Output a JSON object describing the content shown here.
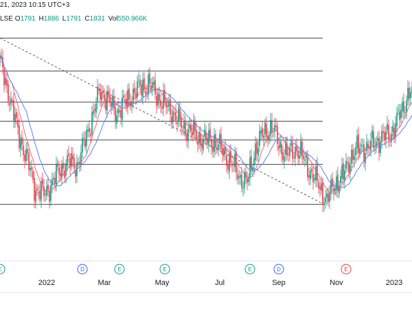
{
  "header": {
    "datetime_fragment": "21, 2023 10:15 UTC+3",
    "exchange_fragment": "LSE",
    "ohlc": [
      {
        "label": "O",
        "value": "1791"
      },
      {
        "label": "H",
        "value": "1886"
      },
      {
        "label": "L",
        "value": "1791"
      },
      {
        "label": "C",
        "value": "1831"
      },
      {
        "label": "Vol",
        "value": "550.966K"
      }
    ]
  },
  "chart_data": {
    "type": "candlestick",
    "x_tick_labels": [
      "2022",
      "Mar",
      "May",
      "Jul",
      "Sep",
      "Nov",
      "2023"
    ],
    "ylim": [
      1380,
      2040
    ],
    "fib_levels": [
      2010,
      1917,
      1829,
      1775,
      1722,
      1653,
      1540
    ],
    "trendline": {
      "start": [
        0,
        2010
      ],
      "end": [
        236,
        1540
      ]
    },
    "series_colors": {
      "up": "#089981",
      "down": "#f23645",
      "ma_fast": "#f06277",
      "ma_slow": "#5b7ff5"
    },
    "events": [
      {
        "i": 0,
        "letter": "E",
        "kind": "earnings"
      },
      {
        "i": 60,
        "letter": "D",
        "kind": "dividend"
      },
      {
        "i": 87,
        "letter": "E",
        "kind": "earnings"
      },
      {
        "i": 120,
        "letter": "E",
        "kind": "earnings"
      },
      {
        "i": 182,
        "letter": "E",
        "kind": "earnings"
      },
      {
        "i": 203,
        "letter": "D",
        "kind": "dividend"
      },
      {
        "i": 252,
        "letter": "E",
        "kind": "earnings-red"
      }
    ],
    "close_anchors": [
      [
        0,
        1940
      ],
      [
        6,
        1860
      ],
      [
        12,
        1760
      ],
      [
        20,
        1660
      ],
      [
        26,
        1580
      ],
      [
        32,
        1570
      ],
      [
        38,
        1600
      ],
      [
        44,
        1640
      ],
      [
        50,
        1660
      ],
      [
        56,
        1650
      ],
      [
        62,
        1720
      ],
      [
        68,
        1800
      ],
      [
        73,
        1860
      ],
      [
        78,
        1840
      ],
      [
        84,
        1800
      ],
      [
        90,
        1820
      ],
      [
        96,
        1850
      ],
      [
        102,
        1870
      ],
      [
        108,
        1880
      ],
      [
        114,
        1850
      ],
      [
        120,
        1820
      ],
      [
        126,
        1800
      ],
      [
        132,
        1760
      ],
      [
        138,
        1750
      ],
      [
        144,
        1730
      ],
      [
        150,
        1720
      ],
      [
        156,
        1720
      ],
      [
        162,
        1690
      ],
      [
        168,
        1660
      ],
      [
        174,
        1620
      ],
      [
        180,
        1600
      ],
      [
        186,
        1700
      ],
      [
        192,
        1740
      ],
      [
        198,
        1760
      ],
      [
        204,
        1700
      ],
      [
        210,
        1680
      ],
      [
        216,
        1700
      ],
      [
        222,
        1660
      ],
      [
        228,
        1620
      ],
      [
        234,
        1580
      ],
      [
        238,
        1550
      ],
      [
        244,
        1600
      ],
      [
        250,
        1620
      ],
      [
        256,
        1680
      ],
      [
        262,
        1700
      ],
      [
        268,
        1700
      ],
      [
        274,
        1720
      ],
      [
        280,
        1730
      ],
      [
        286,
        1750
      ],
      [
        292,
        1800
      ],
      [
        298,
        1860
      ],
      [
        300,
        1840
      ]
    ]
  }
}
